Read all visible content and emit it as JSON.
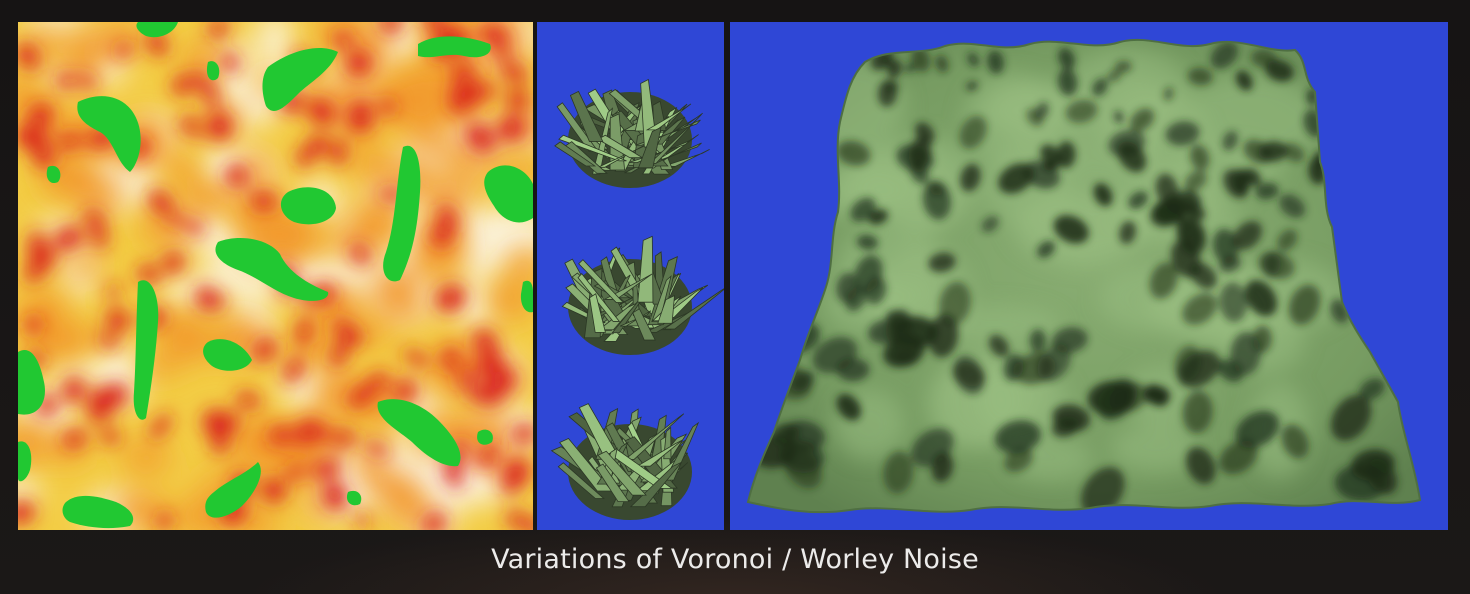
{
  "caption": "Variations of Voronoi / Worley Noise",
  "panels": [
    {
      "name": "worley-noise-heatmap",
      "palette": [
        "#fbf6e6",
        "#f7dd57",
        "#f2982c",
        "#d9241c",
        "#21c832"
      ]
    },
    {
      "name": "voronoi-crystal-clusters",
      "background": "#2f47d6",
      "surface": "#7ea06a"
    },
    {
      "name": "worley-terrain-surface",
      "background": "#2f47d6",
      "surface": "#7a9f64"
    }
  ]
}
